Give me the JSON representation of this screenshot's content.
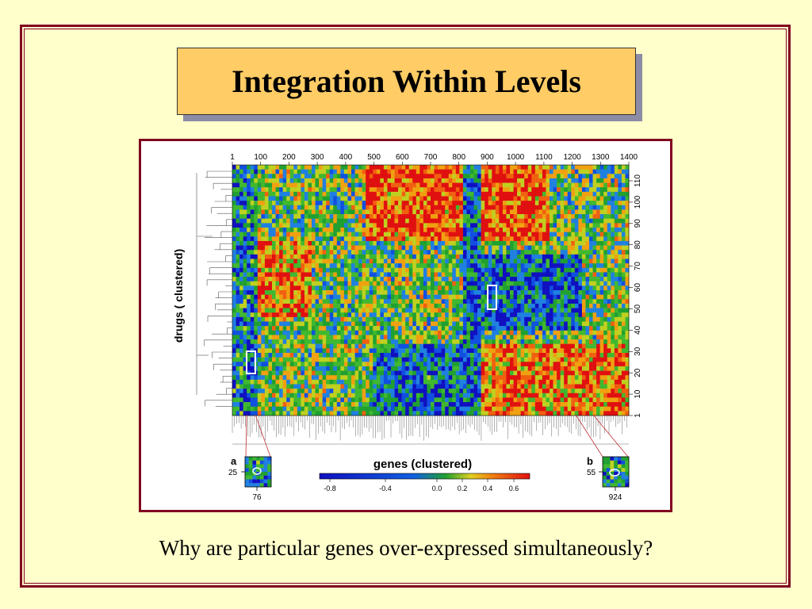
{
  "slide": {
    "title": "Integration Within Levels",
    "caption": "Why are particular genes over-expressed simultaneously?"
  },
  "figure": {
    "x_ticks": [
      "1",
      "100",
      "200",
      "300",
      "400",
      "500",
      "600",
      "700",
      "800",
      "900",
      "1000",
      "1100",
      "1200",
      "1300",
      "1400"
    ],
    "y_ticks": [
      "1",
      "10",
      "20",
      "30",
      "40",
      "50",
      "60",
      "70",
      "80",
      "90",
      "100",
      "110"
    ],
    "y_axis_label": "drugs   ( clustered)",
    "colorbar_label": "genes  (clustered)",
    "colorbar_ticks": [
      "-0.8",
      "-0.4",
      "0.0",
      "0.2",
      "0.4",
      "0.6"
    ],
    "inset_a": {
      "letter": "a",
      "row": "25",
      "col": "76"
    },
    "inset_b": {
      "letter": "b",
      "row": "55",
      "col": "924"
    },
    "colors": {
      "low": "#1030d0",
      "mid": "#20a030",
      "high": "#e01010",
      "frame": "#800020",
      "title_bg": "#ffcc66"
    }
  }
}
